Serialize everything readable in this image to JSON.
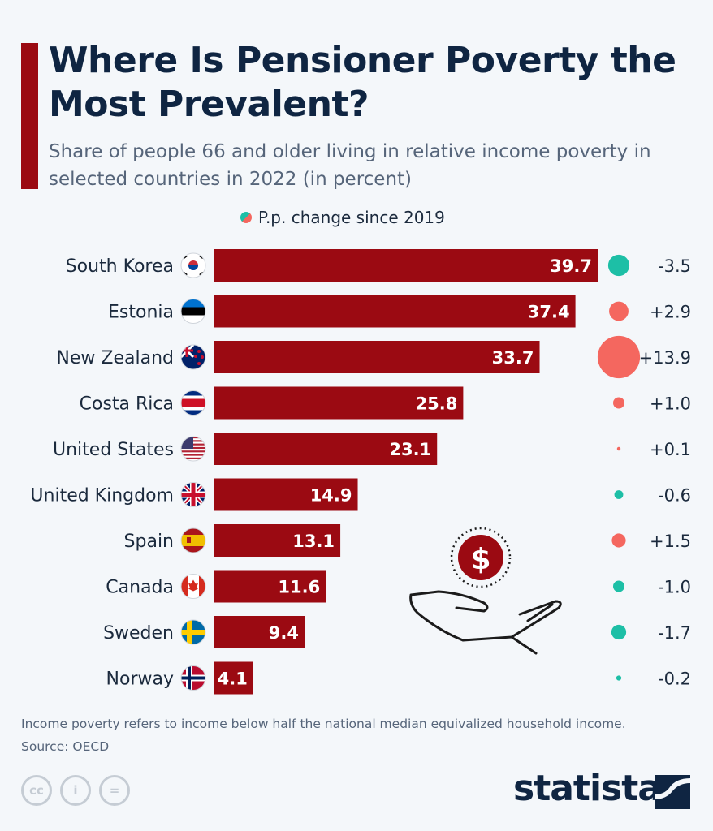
{
  "title": "Where Is Pensioner Poverty the Most Prevalent?",
  "subtitle": "Share of people 66 and older living in relative income poverty in selected countries in 2022 (in percent)",
  "legend_label": "P.p. change since 2019",
  "note": "Income poverty refers to income below half the national median equivalized household income.",
  "source": "Source: OECD",
  "brand": "statista",
  "license_icons": [
    "cc-icon",
    "attribution-icon",
    "no-derivatives-icon"
  ],
  "colors": {
    "bar": "#9b0a12",
    "increase": "#f4675f",
    "decrease": "#1dbfa6",
    "title": "#0f2542"
  },
  "chart_data": {
    "type": "bar",
    "orientation": "horizontal",
    "categories": [
      "South Korea",
      "Estonia",
      "New Zealand",
      "Costa Rica",
      "United States",
      "United Kingdom",
      "Spain",
      "Canada",
      "Sweden",
      "Norway"
    ],
    "values": [
      39.7,
      37.4,
      33.7,
      25.8,
      23.1,
      14.9,
      13.1,
      11.6,
      9.4,
      4.1
    ],
    "value_labels": [
      "39.7",
      "37.4",
      "33.7",
      "25.8",
      "23.1",
      "14.9",
      "13.1",
      "11.6",
      "9.4",
      "4.1"
    ],
    "change_series": {
      "name": "P.p. change since 2019",
      "values": [
        -3.5,
        2.9,
        13.9,
        1.0,
        0.1,
        -0.6,
        1.5,
        -1.0,
        -1.7,
        -0.2
      ],
      "labels": [
        "-3.5",
        "+2.9",
        "+13.9",
        "+1.0",
        "+0.1",
        "-0.6",
        "+1.5",
        "-1.0",
        "-1.7",
        "-0.2"
      ]
    },
    "flags": [
      "south-korea-flag-icon",
      "estonia-flag-icon",
      "new-zealand-flag-icon",
      "costa-rica-flag-icon",
      "united-states-flag-icon",
      "united-kingdom-flag-icon",
      "spain-flag-icon",
      "canada-flag-icon",
      "sweden-flag-icon",
      "norway-flag-icon"
    ],
    "xlim": [
      0,
      40
    ],
    "grid": false
  }
}
